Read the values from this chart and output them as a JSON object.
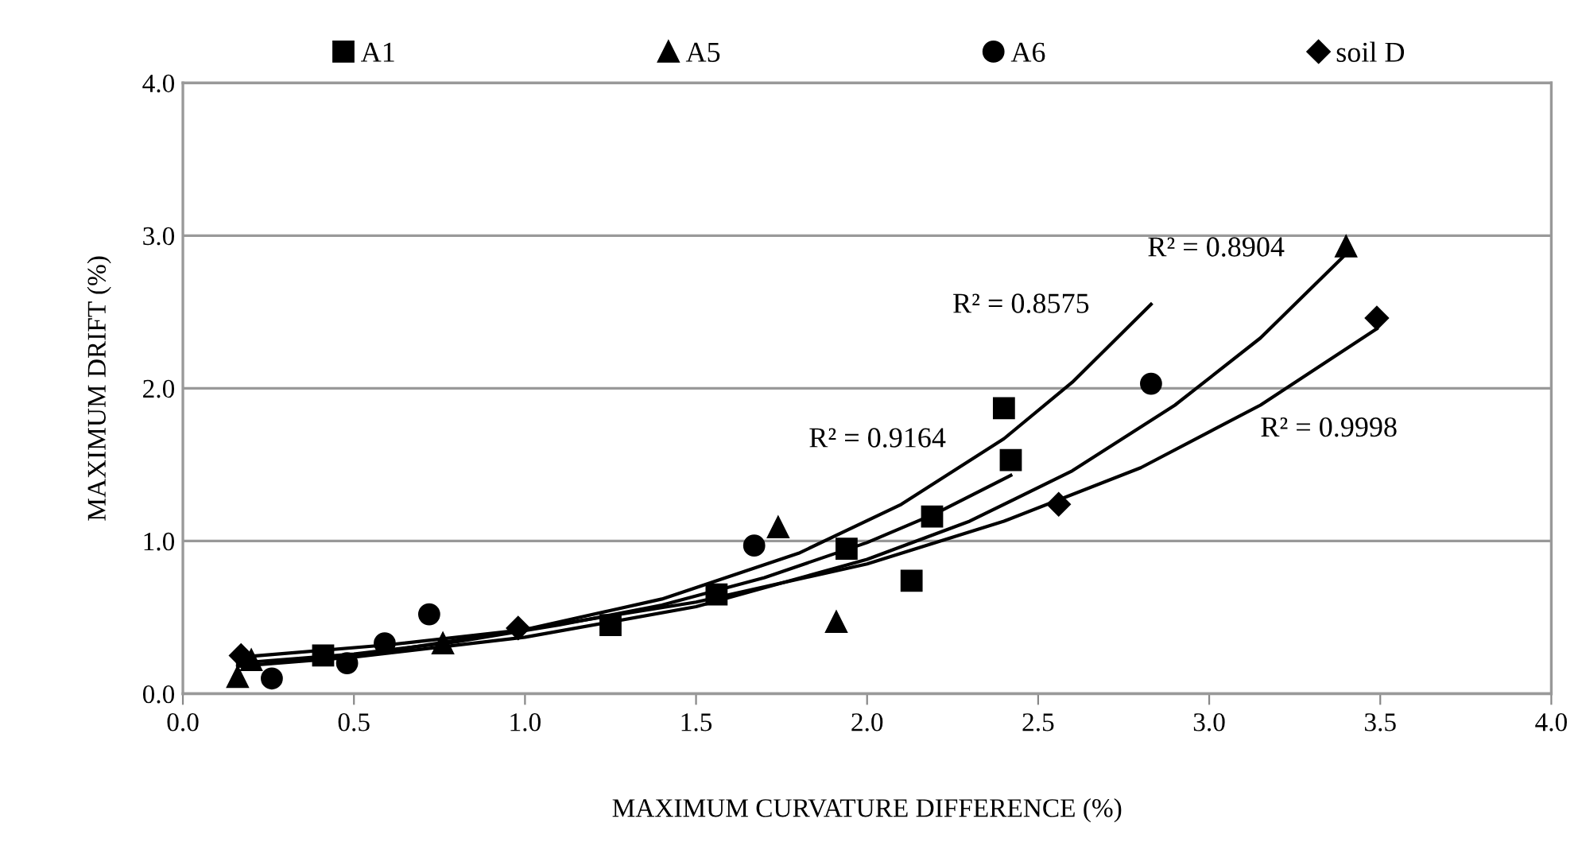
{
  "chart_data": {
    "type": "scatter",
    "xlabel": "MAXIMUM CURVATURE DIFFERENCE (%)",
    "ylabel": "MAXIMUM DRIFT (%)",
    "xlim": [
      0,
      4
    ],
    "ylim": [
      0,
      4
    ],
    "xticks": [
      {
        "value": 0,
        "label": "0.0"
      },
      {
        "value": 0.5,
        "label": "0.5"
      },
      {
        "value": 1,
        "label": "1.0"
      },
      {
        "value": 1.5,
        "label": "1.5"
      },
      {
        "value": 2,
        "label": "2.0"
      },
      {
        "value": 2.5,
        "label": "2.5"
      },
      {
        "value": 3,
        "label": "3.0"
      },
      {
        "value": 3.5,
        "label": "3.5"
      },
      {
        "value": 4,
        "label": "4.0"
      }
    ],
    "yticks": [
      {
        "value": 0,
        "label": "0.0"
      },
      {
        "value": 1,
        "label": "1.0"
      },
      {
        "value": 2,
        "label": "2.0"
      },
      {
        "value": 3,
        "label": "3.0"
      },
      {
        "value": 4,
        "label": "4.0"
      }
    ],
    "grid": "y",
    "legend": "top",
    "series": [
      {
        "name": "A1",
        "color": "#000000",
        "marker": "square",
        "x": [
          0.41,
          1.25,
          1.56,
          1.94,
          2.13,
          2.19,
          2.4,
          2.42
        ],
        "values": [
          0.25,
          0.45,
          0.65,
          0.95,
          0.74,
          1.16,
          1.87,
          1.53
        ]
      },
      {
        "name": "A5",
        "color": "#000000",
        "marker": "triangle",
        "x": [
          0.16,
          0.2,
          0.76,
          1.74,
          1.91,
          3.4
        ],
        "values": [
          0.11,
          0.22,
          0.33,
          1.09,
          0.47,
          2.93
        ]
      },
      {
        "name": "A6",
        "color": "#000000",
        "marker": "circle",
        "x": [
          0.26,
          0.48,
          0.59,
          0.72,
          1.67,
          2.83
        ],
        "values": [
          0.1,
          0.2,
          0.33,
          0.52,
          0.97,
          2.03
        ]
      },
      {
        "name": "soil D",
        "color": "#000000",
        "marker": "diamond",
        "x": [
          0.17,
          0.98,
          2.56,
          3.49
        ],
        "values": [
          0.25,
          0.43,
          1.24,
          2.46
        ]
      },
      {
        "type": "line",
        "color": "#000000",
        "marker": "none",
        "x": [
          0.16,
          0.5,
          0.8,
          1.1,
          1.4,
          1.7,
          2.0,
          2.2,
          2.42
        ],
        "values": [
          0.2,
          0.26,
          0.34,
          0.45,
          0.58,
          0.76,
          0.99,
          1.18,
          1.43
        ]
      },
      {
        "type": "line",
        "color": "#000000",
        "marker": "none",
        "x": [
          0.16,
          0.5,
          1.0,
          1.5,
          2.0,
          2.3,
          2.6,
          2.9,
          3.15,
          3.4
        ],
        "values": [
          0.18,
          0.24,
          0.37,
          0.57,
          0.88,
          1.13,
          1.46,
          1.89,
          2.33,
          2.88
        ]
      },
      {
        "type": "line",
        "color": "#000000",
        "marker": "none",
        "x": [
          0.26,
          0.6,
          1.0,
          1.4,
          1.8,
          2.1,
          2.4,
          2.6,
          2.83
        ],
        "values": [
          0.2,
          0.28,
          0.42,
          0.62,
          0.92,
          1.24,
          1.67,
          2.04,
          2.55
        ]
      },
      {
        "type": "line",
        "color": "#000000",
        "marker": "none",
        "x": [
          0.17,
          0.6,
          1.0,
          1.5,
          2.0,
          2.4,
          2.8,
          3.15,
          3.49
        ],
        "values": [
          0.24,
          0.32,
          0.42,
          0.6,
          0.85,
          1.13,
          1.48,
          1.89,
          2.39
        ]
      }
    ],
    "annotations": [
      "R² = 0.9164",
      "R² = 0.8575",
      "R² = 0.8904",
      "R² = 0.9998"
    ]
  }
}
